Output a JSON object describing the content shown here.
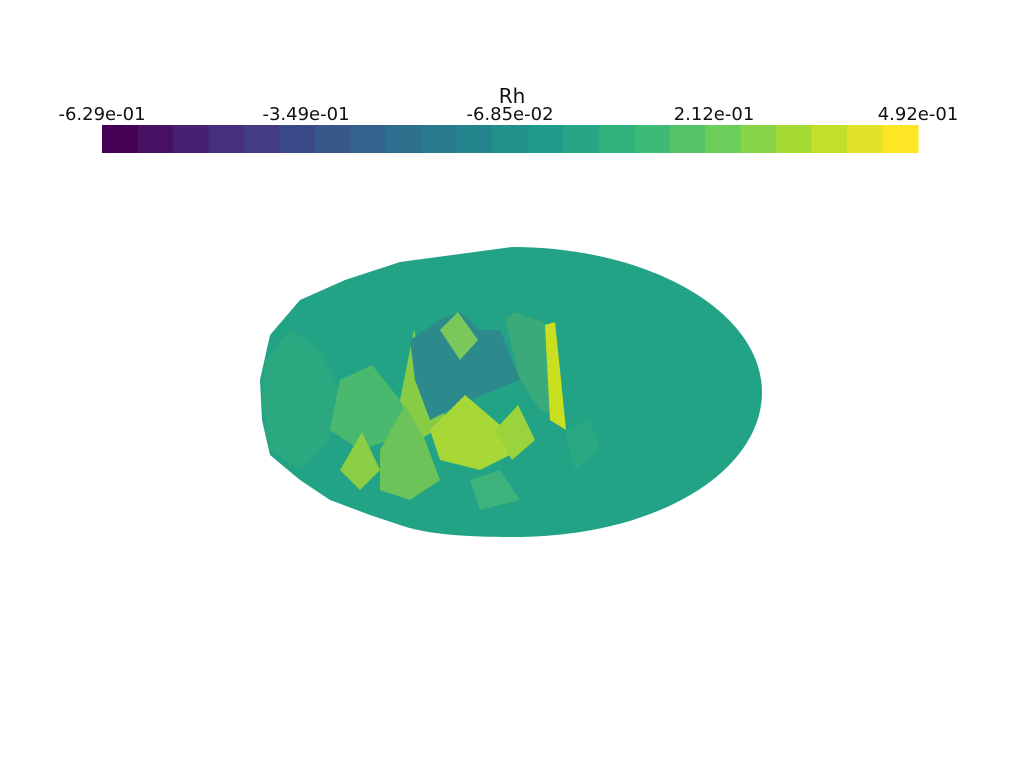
{
  "scalar_bar": {
    "title": "Rh",
    "labels": [
      "-6.29e-01",
      "-3.49e-01",
      "-6.85e-02",
      "2.12e-01",
      "4.92e-01"
    ]
  }
}
